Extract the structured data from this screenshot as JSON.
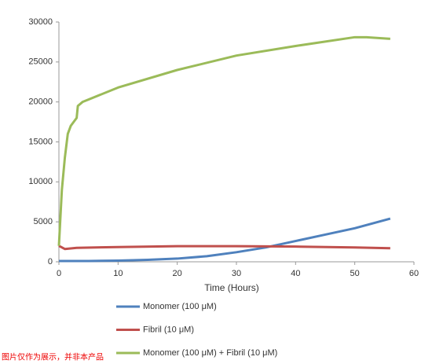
{
  "chart_data": {
    "type": "line",
    "x_label": "Time (Hours)",
    "xlim": [
      0,
      60
    ],
    "xticks": [
      0,
      10,
      20,
      30,
      40,
      50,
      60
    ],
    "ylim": [
      0,
      30000
    ],
    "yticks": [
      0,
      5000,
      10000,
      15000,
      20000,
      25000,
      30000
    ],
    "grid": false,
    "legend": "bottom",
    "series": [
      {
        "name": "Monomer (100 μM)",
        "color": "#4f81bd",
        "x": [
          0,
          5,
          10,
          15,
          20,
          25,
          30,
          35,
          40,
          45,
          50,
          53,
          56
        ],
        "values": [
          100,
          100,
          150,
          250,
          400,
          700,
          1200,
          1800,
          2600,
          3400,
          4200,
          4800,
          5400
        ]
      },
      {
        "name": "Fibril (10 μM)",
        "color": "#c0504d",
        "x": [
          0,
          1,
          3,
          10,
          20,
          30,
          40,
          50,
          56
        ],
        "values": [
          2000,
          1600,
          1750,
          1850,
          1950,
          1950,
          1900,
          1800,
          1700
        ]
      },
      {
        "name": "Monomer (100 μM) + Fibril (10 μM)",
        "color": "#9bbb59",
        "x": [
          0,
          0.5,
          1,
          1.5,
          2,
          3,
          3.2,
          4,
          10,
          20,
          30,
          40,
          50,
          52,
          56
        ],
        "values": [
          2000,
          9000,
          13000,
          16000,
          17000,
          18000,
          19500,
          20000,
          21800,
          24000,
          25800,
          27000,
          28100,
          28100,
          27900
        ]
      }
    ],
    "annotation": "图片仅作为展示，并非本产品"
  }
}
